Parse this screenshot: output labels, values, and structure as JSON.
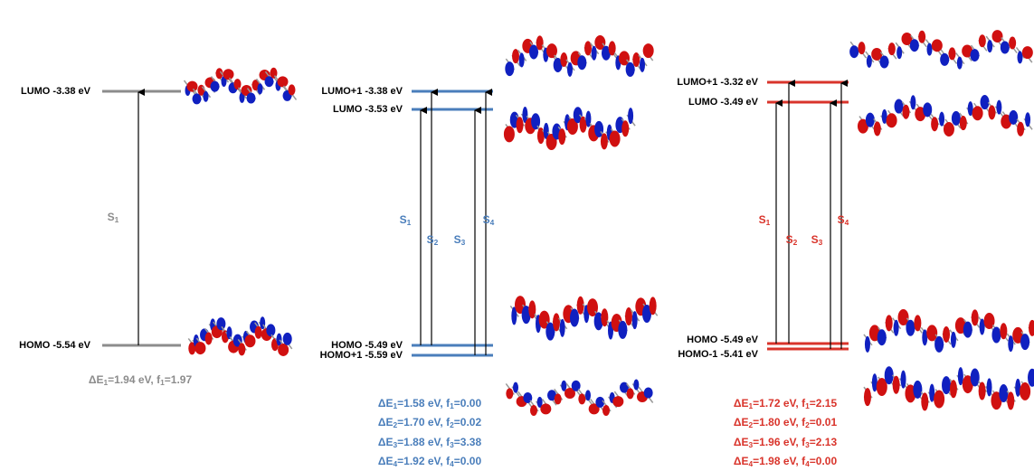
{
  "panels": [
    {
      "levels": [
        "LUMO -3.38 eV",
        "HOMO -5.54 eV"
      ],
      "transitions": [
        [
          "S",
          "1"
        ]
      ],
      "energies": [
        [
          "ΔE",
          "1",
          "=1.94 eV, f",
          "1",
          "=1.97"
        ]
      ]
    },
    {
      "levels": [
        "LUMO+1 -3.38 eV",
        "LUMO -3.53 eV",
        "HOMO -5.49 eV",
        "HOMO+1 -5.59 eV"
      ],
      "transitions": [
        [
          "S",
          "1"
        ],
        [
          "S",
          "2"
        ],
        [
          "S",
          "3"
        ],
        [
          "S",
          "4"
        ]
      ],
      "energies": [
        [
          "ΔE",
          "1",
          "=1.58 eV, f",
          "1",
          "=0.00"
        ],
        [
          "ΔE",
          "2",
          "=1.70 eV, f",
          "2",
          "=0.02"
        ],
        [
          "ΔE",
          "3",
          "=1.88 eV, f",
          "3",
          "=3.38"
        ],
        [
          "ΔE",
          "4",
          "=1.92 eV, f",
          "4",
          "=0.00"
        ]
      ]
    },
    {
      "levels": [
        "LUMO+1 -3.32 eV",
        "LUMO -3.49 eV",
        "HOMO -5.49 eV",
        "HOMO-1 -5.41 eV"
      ],
      "transitions": [
        [
          "S",
          "1"
        ],
        [
          "S",
          "2"
        ],
        [
          "S",
          "3"
        ],
        [
          "S",
          "4"
        ]
      ],
      "energies": [
        [
          "ΔE",
          "1",
          "=1.72 eV, f",
          "1",
          "=2.15"
        ],
        [
          "ΔE",
          "2",
          "=1.80 eV, f",
          "2",
          "=0.01"
        ],
        [
          "ΔE",
          "3",
          "=1.96 eV, f",
          "3",
          "=2.13"
        ],
        [
          "ΔE",
          "4",
          "=1.98 eV, f",
          "4",
          "=0.00"
        ]
      ]
    }
  ]
}
